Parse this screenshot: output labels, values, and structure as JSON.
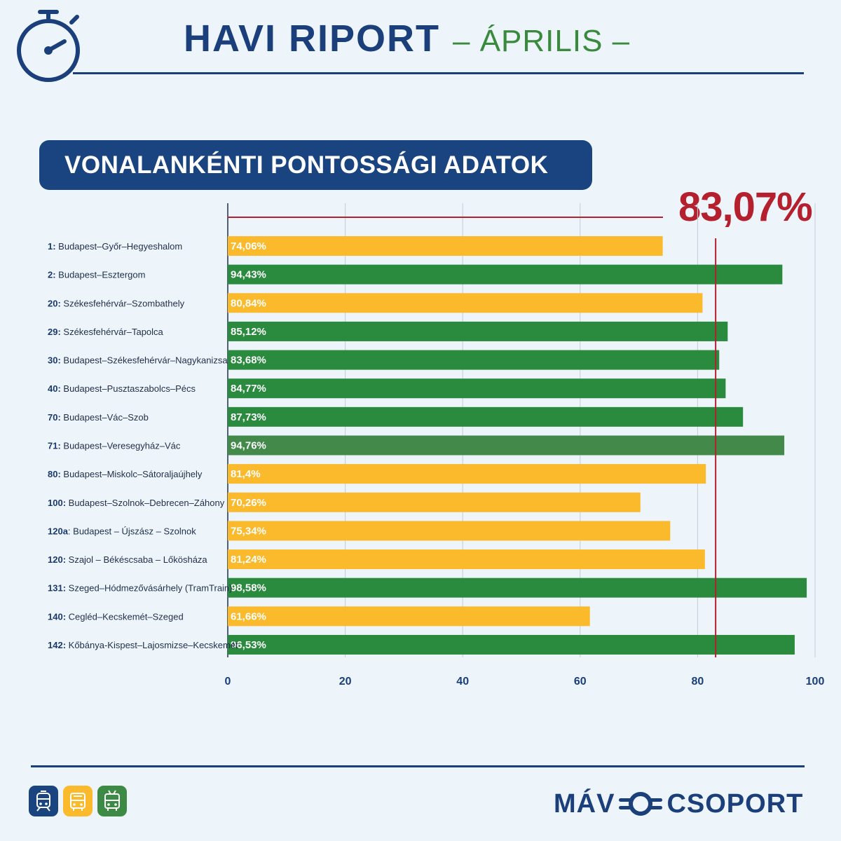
{
  "header": {
    "title_main": "HAVI RIPORT",
    "title_sub": "– ÁPRILIS –",
    "icon": "stopwatch-icon"
  },
  "section": {
    "title": "VONALANKÉNTI PONTOSSÁGI ADATOK"
  },
  "chart_data": {
    "type": "bar",
    "orientation": "horizontal",
    "reference_line": {
      "value": 83.07,
      "label": "83,07%",
      "color": "#b5202e"
    },
    "categories": [
      {
        "num": "1:",
        "name": " Budapest–Győr–Hegyeshalom"
      },
      {
        "num": "2:",
        "name": " Budapest–Esztergom"
      },
      {
        "num": "20:",
        "name": " Székesfehérvár–Szombathely"
      },
      {
        "num": "29:",
        "name": " Székesfehérvár–Tapolca"
      },
      {
        "num": "30:",
        "name": " Budapest–Székesfehérvár–Nagykanizsa"
      },
      {
        "num": "40:",
        "name": " Budapest–Pusztaszabolcs–Pécs"
      },
      {
        "num": "70:",
        "name": " Budapest–Vác–Szob"
      },
      {
        "num": "71:",
        "name": " Budapest–Veresegyház–Vác"
      },
      {
        "num": "80:",
        "name": " Budapest–Miskolc–Sátoraljaújhely"
      },
      {
        "num": "100:",
        "name": " Budapest–Szolnok–Debrecen–Záhony"
      },
      {
        "num": "120a",
        "name": ": Budapest – Újszász – Szolnok"
      },
      {
        "num": "120:",
        "name": " Szajol – Békéscsaba – Lőkösháza"
      },
      {
        "num": "131:",
        "name": " Szeged–Hódmezővásárhely (TramTrain)"
      },
      {
        "num": "140:",
        "name": " Cegléd–Kecskemét–Szeged"
      },
      {
        "num": "142:",
        "name": " Kőbánya-Kispest–Lajosmizse–Kecskemét"
      }
    ],
    "values": [
      74.06,
      94.43,
      80.84,
      85.12,
      83.68,
      84.77,
      87.73,
      94.76,
      81.4,
      70.26,
      75.34,
      81.24,
      98.58,
      61.66,
      96.53
    ],
    "value_labels": [
      "74,06%",
      "94,43%",
      "80,84%",
      "85,12%",
      "83,68%",
      "84,77%",
      "87,73%",
      "94,76%",
      "81,4%",
      "70,26%",
      "75,34%",
      "81,24%",
      "98,58%",
      "61,66%",
      "96,53%"
    ],
    "bar_colors": [
      "#fbb92c",
      "#2a8a3e",
      "#fbb92c",
      "#2a8a3e",
      "#2a8a3e",
      "#2a8a3e",
      "#2a8a3e",
      "#42894a",
      "#fbb92c",
      "#fbb92c",
      "#fbb92c",
      "#fbb92c",
      "#2a8a3e",
      "#fbb92c",
      "#2a8a3e"
    ],
    "xlim": [
      0,
      100
    ],
    "xticks": [
      0,
      20,
      40,
      60,
      80,
      100
    ],
    "grid": "vertical",
    "xlabel": "",
    "ylabel": ""
  },
  "footer": {
    "mode_icons": [
      {
        "name": "train-icon",
        "color": "#1a4480"
      },
      {
        "name": "bus-icon",
        "color": "#fbb92c"
      },
      {
        "name": "trolley-icon",
        "color": "#3d8a45"
      }
    ],
    "logo_left": "MÁV",
    "logo_right": "CSOPORT",
    "logo_icon": "mav-wings-icon"
  }
}
